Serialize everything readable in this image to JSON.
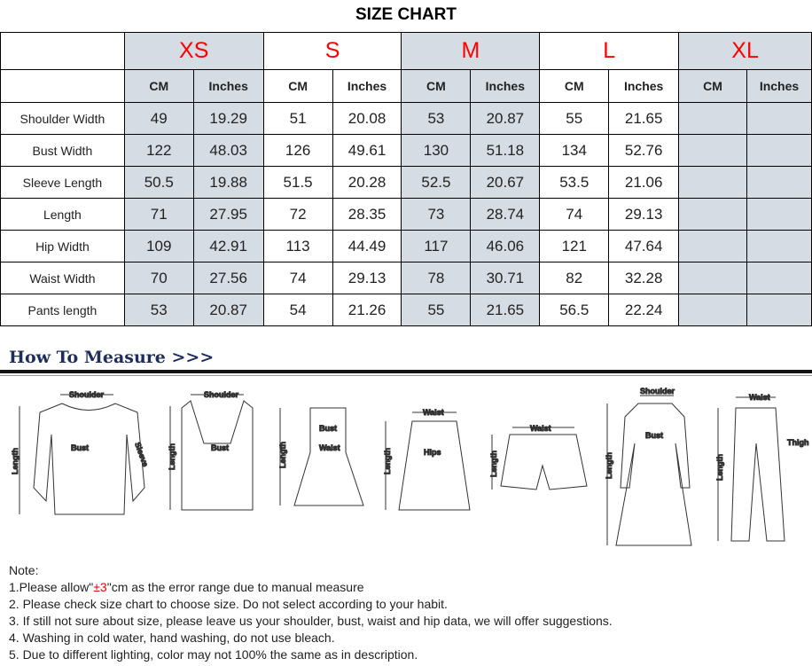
{
  "title": "SIZE CHART",
  "sizes": [
    "XS",
    "S",
    "M",
    "L",
    "XL"
  ],
  "units": [
    "CM",
    "Inches"
  ],
  "rows": [
    {
      "label": "Shoulder Width",
      "values": [
        "49",
        "19.29",
        "51",
        "20.08",
        "53",
        "20.87",
        "55",
        "21.65",
        "",
        ""
      ]
    },
    {
      "label": "Bust Width",
      "values": [
        "122",
        "48.03",
        "126",
        "49.61",
        "130",
        "51.18",
        "134",
        "52.76",
        "",
        ""
      ]
    },
    {
      "label": "Sleeve Length",
      "values": [
        "50.5",
        "19.88",
        "51.5",
        "20.28",
        "52.5",
        "20.67",
        "53.5",
        "21.06",
        "",
        ""
      ]
    },
    {
      "label": "Length",
      "values": [
        "71",
        "27.95",
        "72",
        "28.35",
        "73",
        "28.74",
        "74",
        "29.13",
        "",
        ""
      ]
    },
    {
      "label": "Hip Width",
      "values": [
        "109",
        "42.91",
        "113",
        "44.49",
        "117",
        "46.06",
        "121",
        "47.64",
        "",
        ""
      ]
    },
    {
      "label": "Waist Width",
      "values": [
        "70",
        "27.56",
        "74",
        "29.13",
        "78",
        "30.71",
        "82",
        "32.28",
        "",
        ""
      ]
    },
    {
      "label": "Pants length",
      "values": [
        "53",
        "20.87",
        "54",
        "21.26",
        "55",
        "21.65",
        "56.5",
        "22.24",
        "",
        ""
      ]
    }
  ],
  "measure": {
    "heading": "How To Measure >>>",
    "labels": {
      "shoulder": "Shoulder",
      "bust": "Bust",
      "sleeve": "Sleeve",
      "length": "Length",
      "waist": "Waist",
      "hips": "Hips",
      "thigh": "Thigh"
    }
  },
  "notes": {
    "heading": "Note:",
    "n1_pre": "1.Please allow\"",
    "n1_red": "±3",
    "n1_post": "\"cm as the error range due to manual measure",
    "n2": "2. Please check size chart to choose size. Do not select according to your habit.",
    "n3": "3. If still not sure about size, please leave us your shoulder, bust, waist and hip data, we will offer suggestions.",
    "n4": "4. Washing in cold water, hand washing, do not use bleach.",
    "n5": "5. Due to different lighting, color may not 100% the same as in description."
  },
  "colors": {
    "size_label": "#ff0000",
    "shaded": "#d6dce4"
  }
}
